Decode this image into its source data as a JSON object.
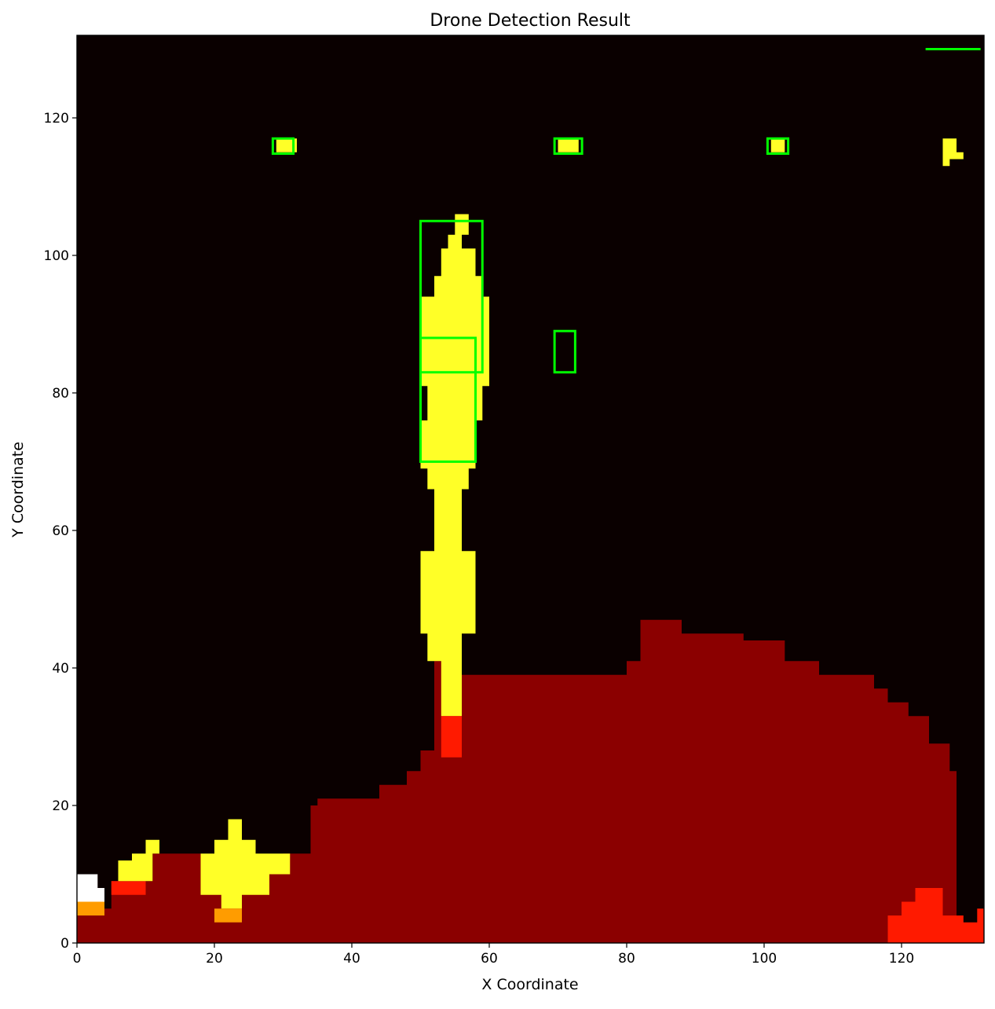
{
  "chart_data": {
    "type": "heatmap",
    "title": "Drone Detection Result",
    "xlabel": "X Coordinate",
    "ylabel": "Y Coordinate",
    "xlim": [
      0,
      132
    ],
    "ylim": [
      0,
      132
    ],
    "x_ticks": [
      0,
      20,
      40,
      60,
      80,
      100,
      120
    ],
    "y_ticks": [
      0,
      20,
      40,
      60,
      80,
      100,
      120
    ],
    "colormap": "hot",
    "colors": {
      "background": "#0a0000",
      "dark_red": "#8b0000",
      "red": "#ff1a00",
      "orange": "#ff9c00",
      "yellow": "#ffff27",
      "white": "#ffffff",
      "box": "#00ff00"
    },
    "regions": [
      {
        "name": "ground-mass",
        "color": "dark_red",
        "points": [
          [
            0,
            0
          ],
          [
            0,
            5
          ],
          [
            5,
            5
          ],
          [
            5,
            9
          ],
          [
            11,
            9
          ],
          [
            11,
            13
          ],
          [
            18,
            13
          ],
          [
            18,
            10
          ],
          [
            30,
            10
          ],
          [
            30,
            13
          ],
          [
            34,
            13
          ],
          [
            34,
            20
          ],
          [
            35,
            20
          ],
          [
            35,
            21
          ],
          [
            44,
            21
          ],
          [
            44,
            23
          ],
          [
            48,
            23
          ],
          [
            48,
            25
          ],
          [
            50,
            25
          ],
          [
            50,
            28
          ],
          [
            52,
            28
          ],
          [
            52,
            33
          ],
          [
            52,
            41
          ],
          [
            56,
            41
          ],
          [
            56,
            39
          ],
          [
            80,
            39
          ],
          [
            80,
            41
          ],
          [
            82,
            41
          ],
          [
            82,
            47
          ],
          [
            88,
            47
          ],
          [
            88,
            45
          ],
          [
            97,
            45
          ],
          [
            97,
            44
          ],
          [
            103,
            44
          ],
          [
            103,
            41
          ],
          [
            108,
            41
          ],
          [
            108,
            39
          ],
          [
            116,
            39
          ],
          [
            116,
            37
          ],
          [
            118,
            37
          ],
          [
            118,
            35
          ],
          [
            121,
            35
          ],
          [
            121,
            33
          ],
          [
            124,
            33
          ],
          [
            124,
            29
          ],
          [
            127,
            29
          ],
          [
            127,
            25
          ],
          [
            128,
            25
          ],
          [
            128,
            16
          ],
          [
            126,
            16
          ],
          [
            126,
            8
          ],
          [
            127,
            8
          ],
          [
            127,
            0
          ]
        ]
      },
      {
        "name": "ground-right-edge",
        "color": "dark_red",
        "points": [
          [
            126,
            4
          ],
          [
            126,
            16
          ],
          [
            128,
            16
          ],
          [
            128,
            4
          ]
        ]
      },
      {
        "name": "hotspot-bottom-right",
        "color": "red",
        "points": [
          [
            118,
            0
          ],
          [
            118,
            4
          ],
          [
            120,
            4
          ],
          [
            120,
            6
          ],
          [
            122,
            6
          ],
          [
            122,
            8
          ],
          [
            126,
            8
          ],
          [
            126,
            4
          ],
          [
            129,
            4
          ],
          [
            129,
            3
          ],
          [
            131,
            3
          ],
          [
            131,
            5
          ],
          [
            132,
            5
          ],
          [
            132,
            0
          ]
        ]
      },
      {
        "name": "hotspot-left-red",
        "color": "red",
        "points": [
          [
            5,
            7
          ],
          [
            5,
            9
          ],
          [
            10,
            9
          ],
          [
            10,
            7
          ]
        ]
      },
      {
        "name": "hotspot-left-white",
        "color": "white",
        "points": [
          [
            0,
            6
          ],
          [
            0,
            10
          ],
          [
            3,
            10
          ],
          [
            3,
            8
          ],
          [
            4,
            8
          ],
          [
            4,
            6
          ]
        ]
      },
      {
        "name": "hotspot-left-orange",
        "color": "orange",
        "points": [
          [
            0,
            4
          ],
          [
            0,
            6
          ],
          [
            4,
            6
          ],
          [
            4,
            4
          ]
        ]
      },
      {
        "name": "hotspot-left-yellow",
        "color": "yellow",
        "points": [
          [
            6,
            9
          ],
          [
            6,
            12
          ],
          [
            8,
            12
          ],
          [
            8,
            13
          ],
          [
            10,
            13
          ],
          [
            10,
            15
          ],
          [
            12,
            15
          ],
          [
            12,
            13
          ],
          [
            11,
            13
          ],
          [
            11,
            9
          ]
        ]
      },
      {
        "name": "hotspot-mid-yellow",
        "color": "yellow",
        "points": [
          [
            18,
            7
          ],
          [
            18,
            13
          ],
          [
            20,
            13
          ],
          [
            20,
            15
          ],
          [
            22,
            15
          ],
          [
            22,
            18
          ],
          [
            24,
            18
          ],
          [
            24,
            15
          ],
          [
            26,
            15
          ],
          [
            26,
            13
          ],
          [
            31,
            13
          ],
          [
            31,
            10
          ],
          [
            28,
            10
          ],
          [
            28,
            7
          ],
          [
            24,
            7
          ],
          [
            24,
            5
          ],
          [
            21,
            5
          ],
          [
            21,
            7
          ]
        ]
      },
      {
        "name": "hotspot-mid-orange",
        "color": "orange",
        "points": [
          [
            20,
            3
          ],
          [
            20,
            5
          ],
          [
            24,
            5
          ],
          [
            24,
            3
          ]
        ]
      },
      {
        "name": "plume",
        "color": "yellow",
        "points": [
          [
            53,
            33
          ],
          [
            53,
            41
          ],
          [
            51,
            41
          ],
          [
            51,
            45
          ],
          [
            50,
            45
          ],
          [
            50,
            57
          ],
          [
            52,
            57
          ],
          [
            52,
            66
          ],
          [
            51,
            66
          ],
          [
            51,
            69
          ],
          [
            50,
            69
          ],
          [
            50,
            76
          ],
          [
            51,
            76
          ],
          [
            51,
            81
          ],
          [
            50,
            81
          ],
          [
            50,
            94
          ],
          [
            52,
            94
          ],
          [
            52,
            97
          ],
          [
            53,
            97
          ],
          [
            53,
            101
          ],
          [
            54,
            101
          ],
          [
            54,
            103
          ],
          [
            55,
            103
          ],
          [
            55,
            106
          ],
          [
            57,
            106
          ],
          [
            57,
            103
          ],
          [
            56,
            103
          ],
          [
            56,
            101
          ],
          [
            58,
            101
          ],
          [
            58,
            97
          ],
          [
            59,
            97
          ],
          [
            59,
            94
          ],
          [
            60,
            94
          ],
          [
            60,
            81
          ],
          [
            59,
            81
          ],
          [
            59,
            76
          ],
          [
            58,
            76
          ],
          [
            58,
            69
          ],
          [
            57,
            69
          ],
          [
            57,
            66
          ],
          [
            56,
            66
          ],
          [
            56,
            57
          ],
          [
            58,
            57
          ],
          [
            58,
            45
          ],
          [
            56,
            45
          ],
          [
            56,
            33
          ]
        ]
      },
      {
        "name": "plume-base",
        "color": "red",
        "points": [
          [
            53,
            27
          ],
          [
            53,
            33
          ],
          [
            56,
            33
          ],
          [
            56,
            27
          ]
        ]
      },
      {
        "name": "blob-1",
        "color": "yellow",
        "points": [
          [
            29,
            115
          ],
          [
            29,
            117
          ],
          [
            32,
            117
          ],
          [
            32,
            115
          ]
        ]
      },
      {
        "name": "blob-2",
        "color": "yellow",
        "points": [
          [
            70,
            115
          ],
          [
            70,
            117
          ],
          [
            73,
            117
          ],
          [
            73,
            115
          ]
        ]
      },
      {
        "name": "blob-3",
        "color": "yellow",
        "points": [
          [
            101,
            115
          ],
          [
            101,
            117
          ],
          [
            103,
            117
          ],
          [
            103,
            115
          ]
        ]
      },
      {
        "name": "blob-4",
        "color": "yellow",
        "points": [
          [
            126,
            113
          ],
          [
            126,
            117
          ],
          [
            128,
            117
          ],
          [
            128,
            115
          ],
          [
            129,
            115
          ],
          [
            129,
            114
          ],
          [
            127,
            114
          ],
          [
            127,
            113
          ]
        ]
      }
    ],
    "boxes": [
      {
        "x0": 28.5,
        "x1": 31.5,
        "y0": 114.8,
        "y1": 117.0
      },
      {
        "x0": 69.5,
        "x1": 73.5,
        "y0": 114.8,
        "y1": 117.0
      },
      {
        "x0": 100.5,
        "x1": 103.5,
        "y0": 114.8,
        "y1": 117.0
      },
      {
        "x0": 50.0,
        "x1": 59.0,
        "y0": 83.0,
        "y1": 105.0
      },
      {
        "x0": 50.0,
        "x1": 58.0,
        "y0": 70.0,
        "y1": 88.0
      },
      {
        "x0": 69.5,
        "x1": 72.5,
        "y0": 83.0,
        "y1": 89.0
      }
    ],
    "segments": [
      {
        "x0": 123.5,
        "x1": 131.5,
        "y0": 130.0,
        "y1": 130.0
      }
    ]
  }
}
